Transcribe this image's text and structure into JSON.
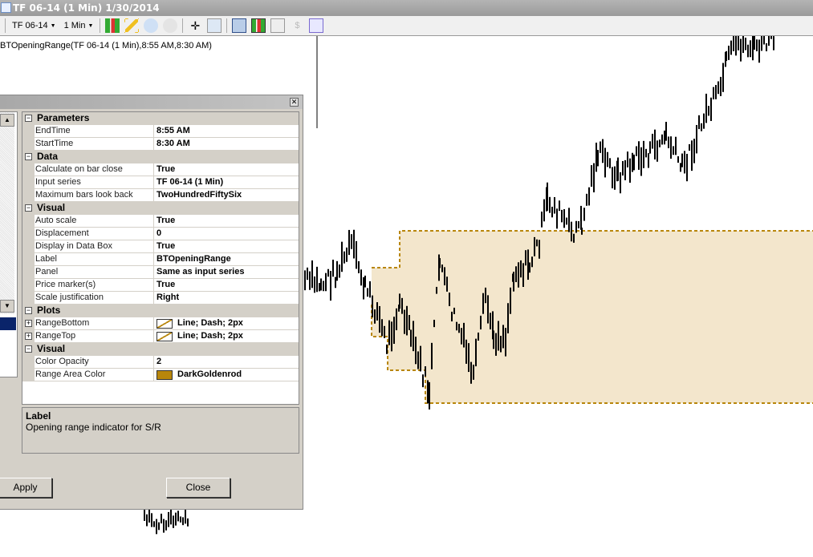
{
  "window": {
    "title": "TF 06-14 (1 Min)  1/30/2014"
  },
  "toolbar": {
    "instrument": "TF 06-14",
    "interval": "1 Min",
    "icons": [
      "candlestick-style-icon",
      "pencil-draw-icon",
      "zoom-in-icon",
      "zoom-out-icon",
      "crosshair-icon",
      "data-box-icon",
      "chart-trader-icon",
      "bar-chart-icon",
      "line-chart-icon",
      "dollar-icon",
      "properties-icon"
    ]
  },
  "chart": {
    "indicator_label": "BTOpeningRange(TF 06-14 (1 Min),8:55 AM,8:30 AM)",
    "range_color": "#B8860B",
    "range_fill": "#F3E6CC"
  },
  "dialog": {
    "categories": [
      {
        "name": "Parameters",
        "rows": [
          {
            "name": "EndTime",
            "value": "8:55 AM"
          },
          {
            "name": "StartTime",
            "value": "8:30 AM"
          }
        ]
      },
      {
        "name": "Data",
        "rows": [
          {
            "name": "Calculate on bar close",
            "value": "True"
          },
          {
            "name": "Input series",
            "value": "TF 06-14 (1 Min)"
          },
          {
            "name": "Maximum bars look back",
            "value": "TwoHundredFiftySix"
          }
        ]
      },
      {
        "name": "Visual",
        "rows": [
          {
            "name": "Auto scale",
            "value": "True"
          },
          {
            "name": "Displacement",
            "value": "0"
          },
          {
            "name": "Display in Data Box",
            "value": "True"
          },
          {
            "name": "Label",
            "value": "BTOpeningRange"
          },
          {
            "name": "Panel",
            "value": "Same as input series"
          },
          {
            "name": "Price marker(s)",
            "value": "True"
          },
          {
            "name": "Scale justification",
            "value": "Right"
          }
        ]
      },
      {
        "name": "Plots",
        "rows": [
          {
            "name": "RangeBottom",
            "value": "Line; Dash; 2px",
            "expand": true,
            "swatch": "plot"
          },
          {
            "name": "RangeTop",
            "value": "Line; Dash; 2px",
            "expand": true,
            "swatch": "plot"
          }
        ]
      },
      {
        "name": "Visual",
        "rows": [
          {
            "name": "Color Opacity",
            "value": "2"
          },
          {
            "name": "Range Area Color",
            "value": "DarkGoldenrod",
            "swatch": "#B8860B"
          }
        ]
      }
    ],
    "description": {
      "title": "Label",
      "text": "Opening range indicator for S/R"
    },
    "apply_label": "Apply",
    "close_label": "Close"
  }
}
